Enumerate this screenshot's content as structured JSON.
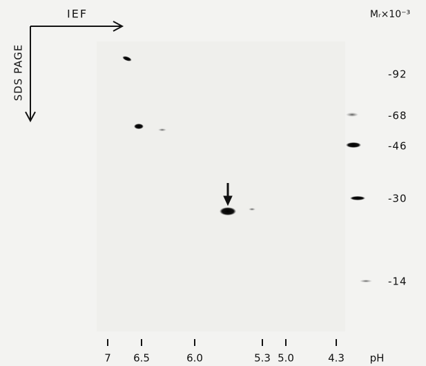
{
  "header": {
    "horizontal_axis": "IEF",
    "vertical_axis": "SDS PAGE",
    "marker_unit": "Mᵣ×10⁻³"
  },
  "mw_markers": [
    "-92",
    "-68",
    "-46",
    "-30",
    "-14"
  ],
  "ph_ticks": [
    "7",
    "6.5",
    "6.0",
    "5.3",
    "5.0",
    "4.3"
  ],
  "ph_label": "pH"
}
